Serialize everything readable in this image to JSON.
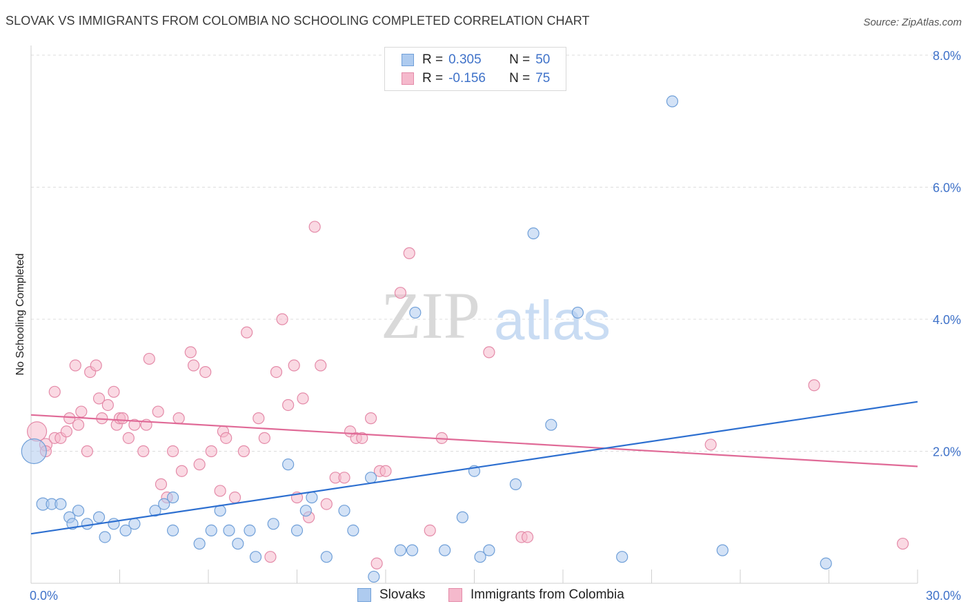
{
  "title": "SLOVAK VS IMMIGRANTS FROM COLOMBIA NO SCHOOLING COMPLETED CORRELATION CHART",
  "source": "Source: ZipAtlas.com",
  "watermark": {
    "zip": "ZIP",
    "atlas": "atlas"
  },
  "legend": {
    "rows": [
      {
        "r_label": "R =",
        "r_value": "0.305",
        "n_label": "N =",
        "n_value": "50"
      },
      {
        "r_label": "R =",
        "r_value": "-0.156",
        "n_label": "N =",
        "n_value": "75"
      }
    ]
  },
  "bottom_legend": {
    "series1": "Slovaks",
    "series2": "Immigrants from Colombia"
  },
  "colors": {
    "series1_fill": "#aecbef",
    "series1_stroke": "#6f9fd8",
    "series1_line": "#2d6fd0",
    "series2_fill": "#f5b9cc",
    "series2_stroke": "#e48aa8",
    "series2_line": "#e06a97",
    "axis_tick": "#3f72c9",
    "grid": "#dcdcdc"
  },
  "chart_data": {
    "type": "scatter",
    "ylabel": "No Schooling Completed",
    "xlim": [
      0,
      30
    ],
    "ylim": [
      0,
      8
    ],
    "x_ticks": [
      {
        "v": 0,
        "label": "0.0%"
      },
      {
        "v": 30,
        "label": "30.0%"
      }
    ],
    "y_ticks": [
      {
        "v": 2,
        "label": "2.0%"
      },
      {
        "v": 4,
        "label": "4.0%"
      },
      {
        "v": 6,
        "label": "6.0%"
      },
      {
        "v": 8,
        "label": "8.0%"
      }
    ],
    "grid": "horizontal dashed",
    "series": [
      {
        "name": "Slovaks",
        "r": 0.305,
        "n": 50,
        "trend": [
          [
            0,
            0.75
          ],
          [
            30,
            2.75
          ]
        ],
        "points": [
          [
            0.1,
            2.0,
            18
          ],
          [
            0.4,
            1.2,
            9
          ],
          [
            0.7,
            1.2,
            8
          ],
          [
            1.0,
            1.2,
            8
          ],
          [
            1.3,
            1.0,
            8
          ],
          [
            1.6,
            1.1,
            8
          ],
          [
            1.4,
            0.9,
            8
          ],
          [
            1.9,
            0.9,
            8
          ],
          [
            2.3,
            1.0,
            8
          ],
          [
            2.5,
            0.7,
            8
          ],
          [
            2.8,
            0.9,
            8
          ],
          [
            3.2,
            0.8,
            8
          ],
          [
            3.5,
            0.9,
            8
          ],
          [
            4.2,
            1.1,
            8
          ],
          [
            4.5,
            1.2,
            8
          ],
          [
            4.8,
            1.3,
            8
          ],
          [
            5.7,
            0.6,
            8
          ],
          [
            6.1,
            0.8,
            8
          ],
          [
            6.4,
            1.1,
            8
          ],
          [
            6.7,
            0.8,
            8
          ],
          [
            7.0,
            0.6,
            8
          ],
          [
            7.4,
            0.8,
            8
          ],
          [
            7.6,
            0.4,
            8
          ],
          [
            8.2,
            0.9,
            8
          ],
          [
            8.7,
            1.8,
            8
          ],
          [
            9.0,
            0.8,
            8
          ],
          [
            9.3,
            1.1,
            8
          ],
          [
            9.5,
            1.3,
            8
          ],
          [
            10.0,
            0.4,
            8
          ],
          [
            10.6,
            1.1,
            8
          ],
          [
            10.9,
            0.8,
            8
          ],
          [
            11.5,
            1.6,
            8
          ],
          [
            11.6,
            0.1,
            8
          ],
          [
            12.5,
            0.5,
            8
          ],
          [
            12.9,
            0.5,
            8
          ],
          [
            13.0,
            4.1,
            8
          ],
          [
            14.0,
            0.5,
            8
          ],
          [
            14.6,
            1.0,
            8
          ],
          [
            15.0,
            1.7,
            8
          ],
          [
            15.2,
            0.4,
            8
          ],
          [
            16.4,
            1.5,
            8
          ],
          [
            15.5,
            0.5,
            8
          ],
          [
            17.6,
            2.4,
            8
          ],
          [
            17.0,
            5.3,
            8
          ],
          [
            18.5,
            4.1,
            8
          ],
          [
            20.0,
            0.4,
            8
          ],
          [
            21.7,
            7.3,
            8
          ],
          [
            23.4,
            0.5,
            8
          ],
          [
            26.9,
            0.3,
            8
          ],
          [
            4.8,
            0.8,
            8
          ]
        ]
      },
      {
        "name": "Immigrants from Colombia",
        "r": -0.156,
        "n": 75,
        "trend": [
          [
            0,
            2.55
          ],
          [
            30,
            1.77
          ]
        ],
        "points": [
          [
            0.2,
            2.3,
            14
          ],
          [
            0.5,
            2.1,
            9
          ],
          [
            0.5,
            2.0,
            8
          ],
          [
            0.8,
            2.2,
            8
          ],
          [
            0.8,
            2.9,
            8
          ],
          [
            1.0,
            2.2,
            8
          ],
          [
            1.2,
            2.3,
            8
          ],
          [
            1.3,
            2.5,
            8
          ],
          [
            1.5,
            3.3,
            8
          ],
          [
            1.6,
            2.4,
            8
          ],
          [
            1.7,
            2.6,
            8
          ],
          [
            1.9,
            2.0,
            8
          ],
          [
            2.0,
            3.2,
            8
          ],
          [
            2.2,
            3.3,
            8
          ],
          [
            2.3,
            2.8,
            8
          ],
          [
            2.4,
            2.5,
            8
          ],
          [
            2.6,
            2.7,
            8
          ],
          [
            2.8,
            2.9,
            8
          ],
          [
            2.9,
            2.4,
            8
          ],
          [
            3.0,
            2.5,
            8
          ],
          [
            3.1,
            2.5,
            8
          ],
          [
            3.3,
            2.2,
            8
          ],
          [
            3.5,
            2.4,
            8
          ],
          [
            3.8,
            2.0,
            8
          ],
          [
            3.9,
            2.4,
            8
          ],
          [
            4.0,
            3.4,
            8
          ],
          [
            4.3,
            2.6,
            8
          ],
          [
            4.4,
            1.5,
            8
          ],
          [
            4.6,
            1.3,
            8
          ],
          [
            4.8,
            2.0,
            8
          ],
          [
            5.0,
            2.5,
            8
          ],
          [
            5.1,
            1.7,
            8
          ],
          [
            5.4,
            3.5,
            8
          ],
          [
            5.5,
            3.3,
            8
          ],
          [
            5.7,
            1.8,
            8
          ],
          [
            5.9,
            3.2,
            8
          ],
          [
            6.1,
            2.0,
            8
          ],
          [
            6.4,
            1.4,
            8
          ],
          [
            6.5,
            2.3,
            8
          ],
          [
            6.6,
            2.2,
            8
          ],
          [
            6.9,
            1.3,
            8
          ],
          [
            7.2,
            2.0,
            8
          ],
          [
            7.3,
            3.8,
            8
          ],
          [
            7.7,
            2.5,
            8
          ],
          [
            7.9,
            2.2,
            8
          ],
          [
            8.1,
            0.4,
            8
          ],
          [
            8.3,
            3.2,
            8
          ],
          [
            8.5,
            4.0,
            8
          ],
          [
            8.7,
            2.7,
            8
          ],
          [
            8.9,
            3.3,
            8
          ],
          [
            9.0,
            1.3,
            8
          ],
          [
            9.2,
            2.8,
            8
          ],
          [
            9.4,
            1.0,
            8
          ],
          [
            9.6,
            5.4,
            8
          ],
          [
            9.8,
            3.3,
            8
          ],
          [
            10.0,
            1.2,
            8
          ],
          [
            10.3,
            1.6,
            8
          ],
          [
            10.6,
            1.6,
            8
          ],
          [
            10.8,
            2.3,
            8
          ],
          [
            11.0,
            2.2,
            8
          ],
          [
            11.2,
            2.2,
            8
          ],
          [
            11.5,
            2.5,
            8
          ],
          [
            11.7,
            0.3,
            8
          ],
          [
            11.8,
            1.7,
            8
          ],
          [
            12.0,
            1.7,
            8
          ],
          [
            12.5,
            4.4,
            8
          ],
          [
            12.8,
            5.0,
            8
          ],
          [
            13.5,
            0.8,
            8
          ],
          [
            13.9,
            2.2,
            8
          ],
          [
            15.5,
            3.5,
            8
          ],
          [
            16.6,
            0.7,
            8
          ],
          [
            16.8,
            0.7,
            8
          ],
          [
            23.0,
            2.1,
            8
          ],
          [
            26.5,
            3.0,
            8
          ],
          [
            29.5,
            0.6,
            8
          ]
        ]
      }
    ]
  }
}
